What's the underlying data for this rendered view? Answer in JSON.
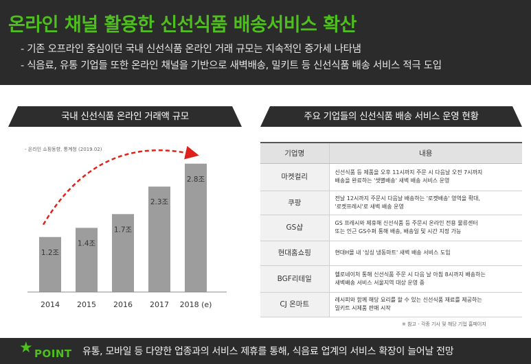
{
  "header": {
    "title": "온라인 채널 활용한 신선식품 배송서비스 확산",
    "bullets": [
      "- 기존 오프라인 중심이던 국내 신선식품 온라인 거래 규모는 지속적인 증가세 나타냄",
      "- 식음료, 유통 기업들 또한 온라인 채널을 기반으로 새벽배송, 밀키트 등 신선식품 배송 서비스 적극 도입"
    ]
  },
  "left": {
    "heading": "국내 신선식품 온라인 거래액 규모",
    "source": "- 온라인 쇼핑동향, 통계청 (2019.02)"
  },
  "chart_data": {
    "type": "bar",
    "categories": [
      "2014",
      "2015",
      "2016",
      "2017",
      "2018 (e)"
    ],
    "values": [
      1.2,
      1.4,
      1.7,
      2.3,
      2.8
    ],
    "data_labels": [
      "1.2조",
      "1.4조",
      "1.7조",
      "2.3조",
      "2.8조"
    ],
    "title": "",
    "xlabel": "",
    "ylabel": "",
    "ylim": [
      0,
      3.2
    ],
    "bar_color": "#9d9d9d",
    "trend_arrow_color": "#e0211b"
  },
  "right": {
    "heading": "주요 기업들의 신선식품 배송 서비스 운영 현황",
    "columns": [
      "기업명",
      "내용"
    ],
    "rows": [
      {
        "name": "마켓컬리",
        "lines": [
          "신선식품 등 제품을 오후 11시까지 주문 시 다음날 오전 7시까지",
          "배송을 완료하는 '샛별배송' 새벽 배송 서비스 운영"
        ]
      },
      {
        "name": "쿠팡",
        "lines": [
          "전날 12시까지 주문시 다음날 배송하는 '로켓배송' 영역을 확대,",
          "'로켓프레시'로 새벽 배송 운영"
        ]
      },
      {
        "name": "GS샵",
        "lines": [
          "GS 프레시와 제휴해 신선식품 등 주문시 온라인 전용 물류센터",
          "또는 인근 GS수퍼 통해 배송, 배송일 및 시간 지정 가능"
        ]
      },
      {
        "name": "현대홈쇼핑",
        "lines": [
          "현대H몰 내 '싱싱 냉동마트' 새벽 배송 서비스 도입"
        ]
      },
      {
        "name": "BGF리테일",
        "lines": [
          "헬로네이처 통해 신선식품 주문 시 다음 날 아침 8시까지 배송하는",
          "새벽배송 서비스 서울지역 대상 운영 중"
        ]
      },
      {
        "name": "CJ 온마트",
        "lines": [
          "레시피와 함께 해당 요리를 할 수 있는 신선식품 재료를 제공하는",
          "밀키트 시제품 판매 시작"
        ]
      }
    ],
    "note": "※ 참고 -  각종 기사 및 해당 기업 홈페이지"
  },
  "point": {
    "label": "POINT",
    "text": "유통, 모바일 등 다양한 업종과의 서비스 제휴를 통해, 식음료 업계의 서비스 확장이 늘어날 전망",
    "icon": "star-icon"
  },
  "colors": {
    "accent": "#4fbe1f",
    "dark": "#2b2b2b"
  }
}
